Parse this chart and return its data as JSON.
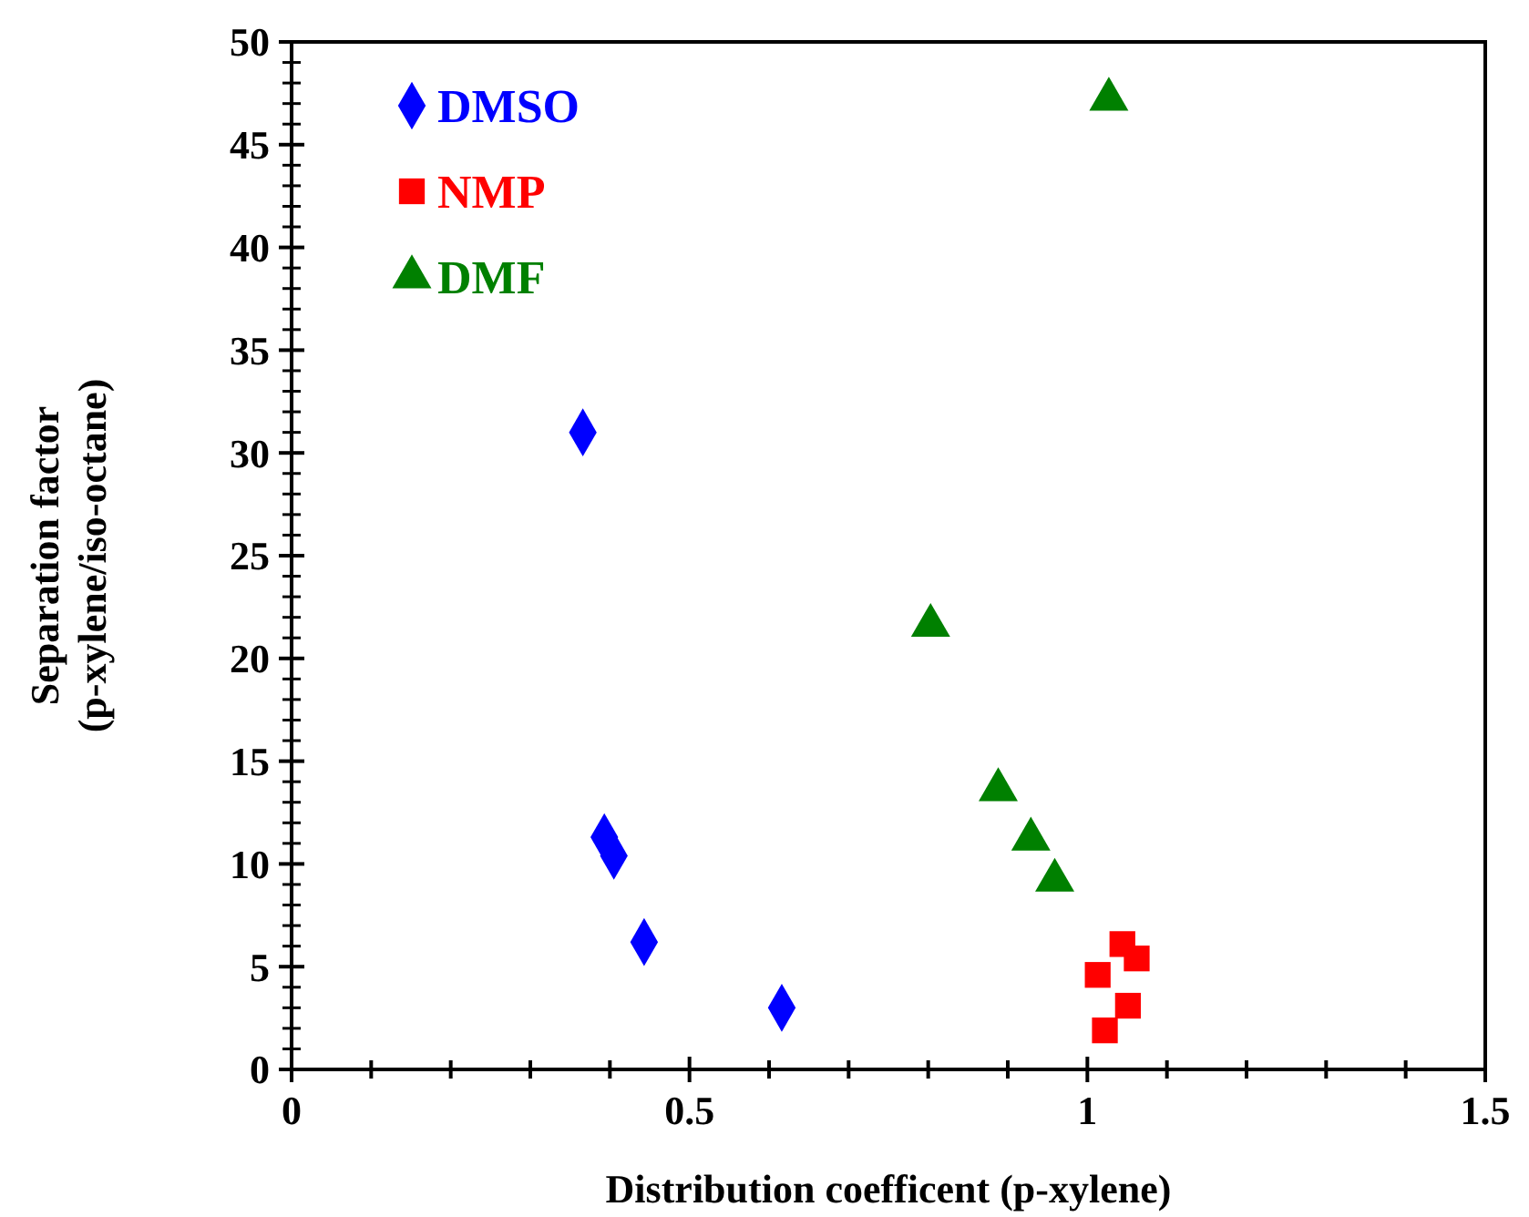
{
  "chart_data": {
    "type": "scatter",
    "xlabel": "Distribution coefficent (p-xylene)",
    "ylabel": "Separation factor\n(p-xylene/iso-octane)",
    "xlim": [
      0,
      1.5
    ],
    "ylim": [
      0,
      50
    ],
    "xticks": [
      0,
      {
        "value": 0.1,
        "label": null
      },
      {
        "value": 0.2,
        "label": null
      },
      {
        "value": 0.3,
        "label": null
      },
      {
        "value": 0.4,
        "label": null
      },
      0.5,
      {
        "value": 0.6,
        "label": null
      },
      {
        "value": 0.7,
        "label": null
      },
      {
        "value": 0.8,
        "label": null
      },
      {
        "value": 0.9,
        "label": null
      },
      1,
      {
        "value": 1.1,
        "label": null
      },
      {
        "value": 1.2,
        "label": null
      },
      {
        "value": 1.3,
        "label": null
      },
      {
        "value": 1.4,
        "label": null
      },
      1.5
    ],
    "yticks": [
      0,
      5,
      10,
      15,
      20,
      25,
      30,
      35,
      40,
      45,
      50
    ],
    "legend": "top left",
    "grid": false,
    "series": [
      {
        "name": "DMSO",
        "color": "#0000ff",
        "marker": "diamond",
        "x": [
          0.366,
          0.393,
          0.405,
          0.443,
          0.616
        ],
        "values": [
          31.0,
          11.3,
          10.4,
          6.2,
          3.0
        ]
      },
      {
        "name": "NMP",
        "color": "#ff0000",
        "marker": "square",
        "x": [
          1.044,
          1.062,
          1.013,
          1.051,
          1.022
        ],
        "values": [
          6.1,
          5.4,
          4.6,
          3.1,
          1.9
        ]
      },
      {
        "name": "DMF",
        "color": "#008000",
        "marker": "triangle",
        "x": [
          1.027,
          0.803,
          0.888,
          0.929,
          0.959
        ],
        "values": [
          47.2,
          21.6,
          13.6,
          11.2,
          9.2
        ]
      }
    ]
  }
}
